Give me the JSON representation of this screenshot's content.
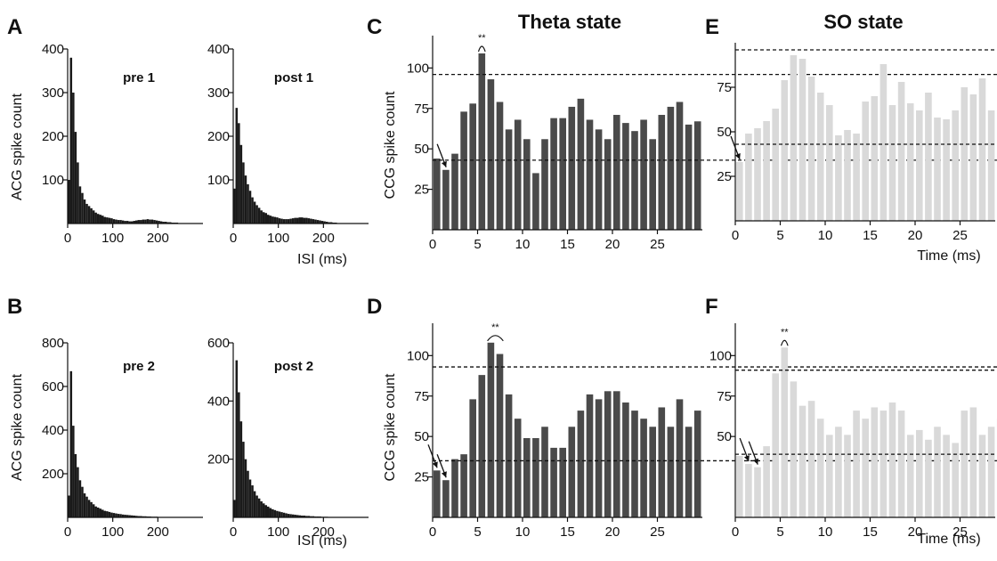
{
  "figure": {
    "letters": {
      "A": "A",
      "B": "B",
      "C": "C",
      "D": "D",
      "E": "E",
      "F": "F"
    },
    "titles": {
      "C": "Theta state",
      "E": "SO state"
    },
    "acg_ylabel": "ACG spike count",
    "ccg_ylabel": "CCG spike count",
    "isi_xlabel": "ISI (ms)",
    "time_xlabel": "Time (ms)",
    "significance": "**"
  },
  "colors": {
    "acg_bars": "#1a1a1a",
    "theta_bars": "#4a4a4a",
    "so_bars": "#d9d9d9",
    "axis": "#111111"
  },
  "chart_data": [
    {
      "id": "A-pre1",
      "type": "bar",
      "label": "pre 1",
      "xlim": [
        0,
        300
      ],
      "ylim": [
        0,
        400
      ],
      "xticks": [
        0,
        100,
        200
      ],
      "yticks": [
        100,
        200,
        300,
        400
      ],
      "bin_width": 5,
      "values": [
        100,
        380,
        300,
        210,
        140,
        85,
        70,
        55,
        45,
        40,
        35,
        30,
        25,
        22,
        20,
        18,
        15,
        14,
        13,
        12,
        10,
        9,
        8,
        8,
        7,
        6,
        6,
        5,
        5,
        6,
        7,
        8,
        8,
        9,
        9,
        10,
        9,
        9,
        8,
        7,
        6,
        5,
        4,
        4,
        3,
        3,
        2,
        2,
        2,
        1,
        1,
        1,
        1,
        1,
        0,
        0,
        0,
        0,
        0,
        0
      ]
    },
    {
      "id": "A-post1",
      "type": "bar",
      "label": "post 1",
      "xlim": [
        0,
        300
      ],
      "ylim": [
        0,
        400
      ],
      "xticks": [
        0,
        100,
        200
      ],
      "yticks": [
        100,
        200,
        300,
        400
      ],
      "bin_width": 5,
      "values": [
        80,
        265,
        230,
        180,
        140,
        110,
        90,
        75,
        60,
        50,
        42,
        36,
        30,
        26,
        24,
        20,
        18,
        16,
        15,
        14,
        12,
        11,
        10,
        10,
        10,
        11,
        12,
        13,
        13,
        14,
        14,
        13,
        13,
        12,
        11,
        10,
        9,
        8,
        7,
        6,
        5,
        4,
        3,
        3,
        2,
        2,
        1,
        1,
        1,
        1,
        1,
        0,
        0,
        0,
        0,
        0,
        0,
        0,
        0,
        0
      ]
    },
    {
      "id": "B-pre2",
      "type": "bar",
      "label": "pre 2",
      "xlim": [
        0,
        300
      ],
      "ylim": [
        0,
        800
      ],
      "xticks": [
        0,
        100,
        200
      ],
      "yticks": [
        200,
        400,
        600,
        800
      ],
      "bin_width": 5,
      "values": [
        100,
        670,
        420,
        290,
        230,
        170,
        140,
        110,
        95,
        80,
        70,
        60,
        50,
        45,
        40,
        35,
        30,
        28,
        25,
        22,
        20,
        18,
        16,
        15,
        13,
        12,
        11,
        10,
        9,
        8,
        7,
        6,
        6,
        5,
        5,
        4,
        4,
        3,
        3,
        3,
        2,
        2,
        2,
        1,
        1,
        1,
        1,
        1,
        0,
        0,
        0,
        0,
        0,
        0,
        0,
        0,
        0,
        0,
        0,
        0
      ]
    },
    {
      "id": "B-post2",
      "type": "bar",
      "label": "post 2",
      "xlim": [
        0,
        300
      ],
      "ylim": [
        0,
        600
      ],
      "xticks": [
        0,
        100,
        200
      ],
      "yticks": [
        200,
        400,
        600
      ],
      "bin_width": 5,
      "values": [
        60,
        540,
        430,
        330,
        260,
        200,
        160,
        130,
        110,
        90,
        75,
        65,
        55,
        48,
        42,
        37,
        32,
        28,
        25,
        22,
        20,
        18,
        16,
        14,
        12,
        11,
        10,
        9,
        8,
        7,
        6,
        6,
        5,
        5,
        4,
        4,
        3,
        3,
        3,
        2,
        2,
        2,
        1,
        1,
        1,
        1,
        1,
        0,
        0,
        0,
        0,
        0,
        0,
        0,
        0,
        0,
        0,
        0,
        0,
        0
      ]
    },
    {
      "id": "C",
      "type": "bar",
      "xlim": [
        0,
        30
      ],
      "ylim": [
        0,
        120
      ],
      "xticks": [
        0,
        5,
        10,
        15,
        20,
        25
      ],
      "yticks": [
        25,
        50,
        75,
        100
      ],
      "x": [
        0,
        1,
        2,
        3,
        4,
        5,
        6,
        7,
        8,
        9,
        10,
        11,
        12,
        13,
        14,
        15,
        16,
        17,
        18,
        19,
        20,
        21,
        22,
        23,
        24,
        25,
        26,
        27,
        28,
        29
      ],
      "values": [
        44,
        37,
        47,
        73,
        78,
        109,
        93,
        79,
        62,
        68,
        56,
        35,
        56,
        69,
        69,
        76,
        81,
        68,
        62,
        56,
        71,
        66,
        61,
        68,
        56,
        71,
        76,
        79,
        65,
        67
      ],
      "upper_threshold": 96,
      "lower_threshold": 43,
      "sig_bins": [
        5,
        5
      ],
      "arrow_bins": [
        1
      ]
    },
    {
      "id": "D",
      "type": "bar",
      "xlim": [
        0,
        30
      ],
      "ylim": [
        0,
        120
      ],
      "xticks": [
        0,
        5,
        10,
        15,
        20,
        25
      ],
      "yticks": [
        25,
        50,
        75,
        100
      ],
      "x": [
        0,
        1,
        2,
        3,
        4,
        5,
        6,
        7,
        8,
        9,
        10,
        11,
        12,
        13,
        14,
        15,
        16,
        17,
        18,
        19,
        20,
        21,
        22,
        23,
        24,
        25,
        26,
        27,
        28,
        29
      ],
      "values": [
        29,
        23,
        36,
        39,
        73,
        88,
        108,
        101,
        76,
        61,
        49,
        49,
        56,
        43,
        43,
        56,
        66,
        76,
        73,
        78,
        78,
        71,
        66,
        61,
        56,
        68,
        56,
        73,
        56,
        66
      ],
      "upper_threshold": 93,
      "lower_threshold": 35,
      "sig_bins": [
        6,
        7
      ],
      "arrow_bins": [
        0,
        1
      ]
    },
    {
      "id": "E",
      "type": "bar",
      "xlim": [
        0,
        30
      ],
      "ylim": [
        0,
        100
      ],
      "xticks": [
        0,
        5,
        10,
        15,
        20,
        25
      ],
      "yticks": [
        25,
        50,
        75
      ],
      "x": [
        0,
        1,
        2,
        3,
        4,
        5,
        6,
        7,
        8,
        9,
        10,
        11,
        12,
        13,
        14,
        15,
        16,
        17,
        18,
        19,
        20,
        21,
        22,
        23,
        24,
        25,
        26,
        27,
        28,
        29
      ],
      "values": [
        33,
        49,
        52,
        56,
        63,
        79,
        93,
        91,
        81,
        72,
        65,
        48,
        51,
        49,
        67,
        70,
        88,
        65,
        78,
        66,
        62,
        72,
        58,
        57,
        62,
        75,
        71,
        80,
        62,
        62
      ],
      "upper_threshold": 96,
      "lower_threshold": 43,
      "arrow_bins": [
        0
      ]
    },
    {
      "id": "F",
      "type": "bar",
      "xlim": [
        0,
        30
      ],
      "ylim": [
        0,
        120
      ],
      "xticks": [
        0,
        5,
        10,
        15,
        20,
        25
      ],
      "yticks": [
        50,
        75,
        100
      ],
      "x": [
        0,
        1,
        2,
        3,
        4,
        5,
        6,
        7,
        8,
        9,
        10,
        11,
        12,
        13,
        14,
        15,
        16,
        17,
        18,
        19,
        20,
        21,
        22,
        23,
        24,
        25,
        26,
        27,
        28,
        29
      ],
      "values": [
        38,
        33,
        31,
        44,
        89,
        105,
        84,
        69,
        72,
        61,
        51,
        56,
        51,
        66,
        61,
        68,
        66,
        71,
        66,
        51,
        54,
        48,
        56,
        51,
        46,
        66,
        68,
        51,
        56,
        61
      ],
      "upper_threshold": 91,
      "lower_threshold": 39,
      "sig_bins": [
        5,
        5
      ],
      "arrow_bins": [
        1,
        2
      ]
    }
  ]
}
